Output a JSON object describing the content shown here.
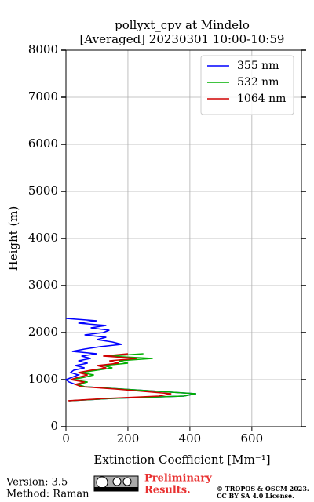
{
  "chart_data": {
    "type": "line",
    "title": "pollyxt_cpv at Mindelo",
    "subtitle": "[Averaged] 20230301 10:00-10:59",
    "xlabel": "Extinction Coefficient [Mm⁻¹]",
    "ylabel": "Height (m)",
    "y": [
      550,
      600,
      650,
      700,
      750,
      800,
      850,
      900,
      950,
      1000,
      1050,
      1100,
      1150,
      1200,
      1250,
      1300,
      1350,
      1400,
      1450,
      1500,
      1550,
      1600,
      1650,
      1700,
      1750,
      1800,
      1850,
      1900,
      1950,
      2000,
      2050,
      2100,
      2150,
      2200,
      2250,
      2300
    ],
    "series": [
      {
        "name": "355 nm",
        "color": "#0000ff",
        "values": [
          10,
          150,
          380,
          420,
          300,
          180,
          60,
          30,
          10,
          0,
          20,
          40,
          15,
          25,
          60,
          30,
          70,
          40,
          80,
          50,
          100,
          20,
          60,
          110,
          180,
          150,
          100,
          130,
          60,
          120,
          140,
          80,
          130,
          40,
          100,
          0
        ]
      },
      {
        "name": "532 nm",
        "color": "#00b000",
        "values": [
          10,
          150,
          380,
          420,
          300,
          180,
          60,
          40,
          70,
          20,
          60,
          90,
          50,
          100,
          150,
          120,
          200,
          170,
          280,
          140,
          250,
          null,
          null,
          null,
          null,
          null,
          null,
          null,
          null,
          null,
          null,
          null,
          null,
          null,
          null,
          null
        ]
      },
      {
        "name": "1064 nm",
        "color": "#d00000",
        "values": [
          5,
          130,
          300,
          340,
          250,
          160,
          50,
          30,
          60,
          15,
          40,
          70,
          40,
          80,
          130,
          100,
          170,
          140,
          230,
          120,
          200,
          null,
          null,
          null,
          null,
          null,
          null,
          null,
          null,
          null,
          null,
          null,
          null,
          null,
          null,
          null
        ]
      }
    ],
    "xlim": [
      0,
      760
    ],
    "xticks": [
      0,
      200,
      400,
      600
    ],
    "ylim": [
      0,
      8000
    ],
    "yticks": [
      0,
      1000,
      2000,
      3000,
      4000,
      5000,
      6000,
      7000,
      8000
    ],
    "grid": true,
    "legend": "upper right"
  },
  "footer": {
    "version": "Version: 3.5",
    "method": "Method: Raman",
    "notice": [
      "Preliminary",
      "Results."
    ],
    "copyright": [
      "© TROPOS & OSCM 2023.",
      "CC BY SA 4.0 License."
    ]
  }
}
